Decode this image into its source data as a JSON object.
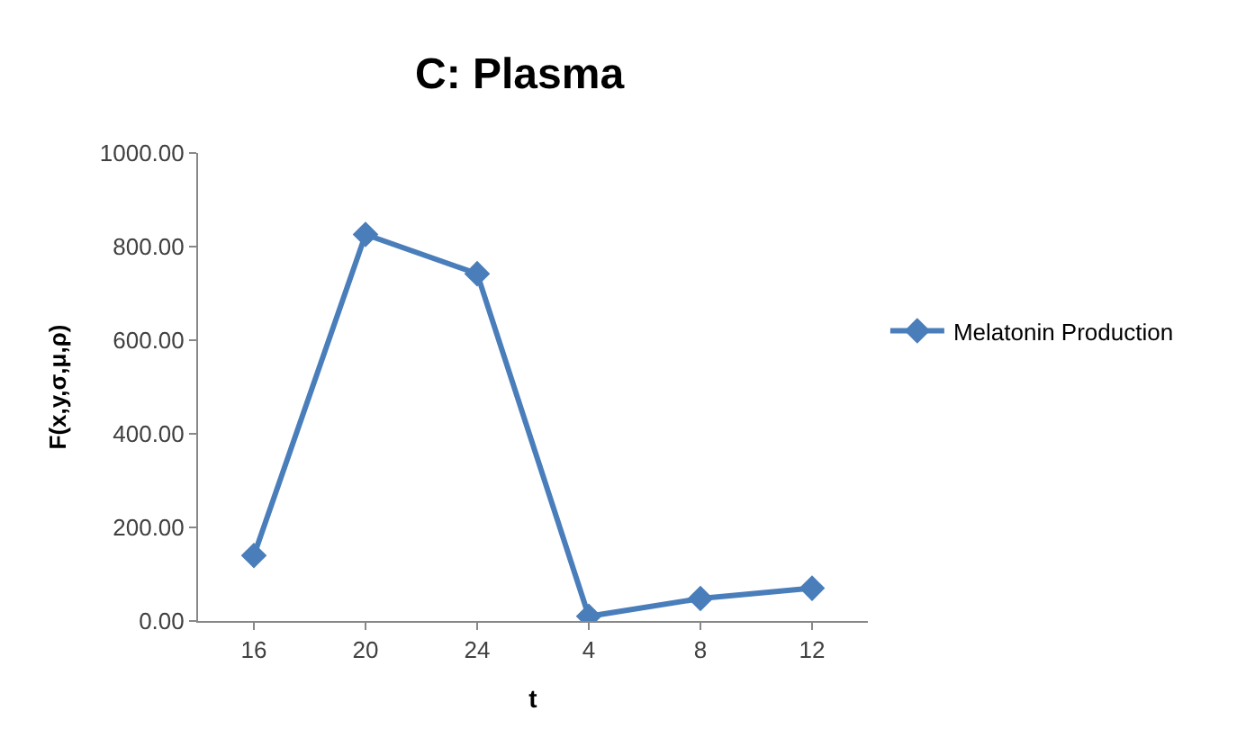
{
  "chart_data": {
    "type": "line",
    "title": "C: Plasma",
    "xlabel": "t",
    "ylabel": "F(x,y,σ,μ,ρ)",
    "categories": [
      "16",
      "20",
      "24",
      "4",
      "8",
      "12"
    ],
    "series": [
      {
        "name": "Melatonin Production",
        "color": "#4a7ebb",
        "values": [
          140,
          826,
          742,
          10,
          48,
          70
        ]
      }
    ],
    "ylim": [
      0,
      1000
    ],
    "yticks": [
      {
        "value": 0,
        "label": "0.00"
      },
      {
        "value": 200,
        "label": "200.00"
      },
      {
        "value": 400,
        "label": "400.00"
      },
      {
        "value": 600,
        "label": "600.00"
      },
      {
        "value": 800,
        "label": "800.00"
      },
      {
        "value": 1000,
        "label": "1000.00"
      }
    ],
    "legend": "right",
    "marker": "diamond",
    "line_style": "solid"
  }
}
